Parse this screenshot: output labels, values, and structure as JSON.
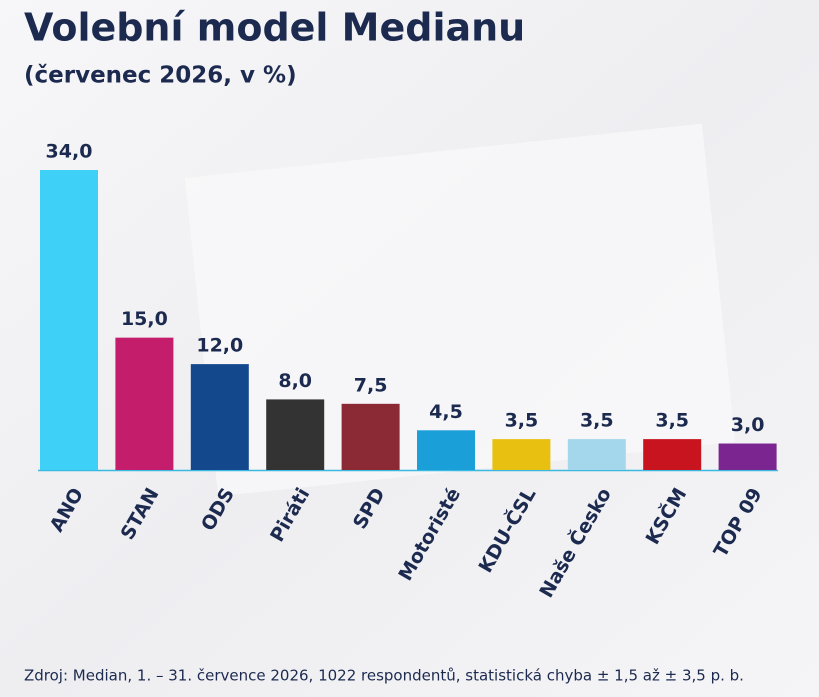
{
  "chart_data": {
    "type": "bar",
    "title": "Volební model Medianu",
    "subtitle": "(červenec 2026, v %)",
    "categories": [
      "ANO",
      "STAN",
      "ODS",
      "Piráti",
      "SPD",
      "Motoristé",
      "KDU-ČSL",
      "Naše Česko",
      "KSČM",
      "TOP 09"
    ],
    "values": [
      34.0,
      15.0,
      12.0,
      8.0,
      7.5,
      4.5,
      3.5,
      3.5,
      3.5,
      3.0
    ],
    "value_labels": [
      "34,0",
      "15,0",
      "12,0",
      "8,0",
      "7,5",
      "4,5",
      "3,5",
      "3,5",
      "3,5",
      "3,0"
    ],
    "colors": [
      "#3fd0f7",
      "#c41d6c",
      "#13488c",
      "#333333",
      "#8b2a35",
      "#1a9fd8",
      "#e8c011",
      "#a4d6ec",
      "#c8141e",
      "#7b2591"
    ],
    "source": "Zdroj: Median, 1. – 31. července 2026, 1022 respondentů, statistická chyba ± 1,5 až ± 3,5 p. b."
  }
}
